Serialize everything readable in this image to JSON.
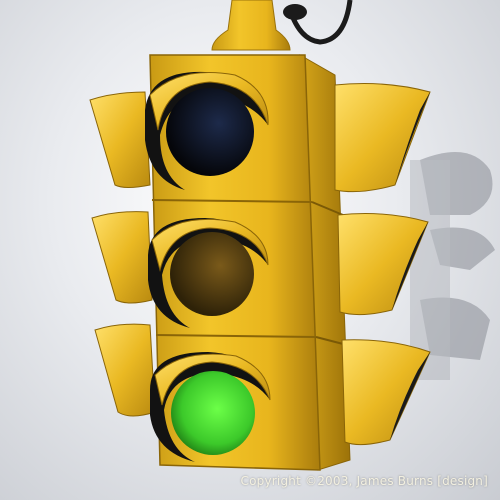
{
  "image": {
    "subject": "traffic-signal",
    "colors": {
      "housing": "#e8b51d",
      "housing_dark": "#b88812",
      "housing_light": "#ffdf5a",
      "lens_top": "#0b0d14",
      "lens_middle": "#4d3a10",
      "lens_bottom": "#3fcf2c",
      "visor_inner": "#1a1a1a",
      "cable": "#1b1b1b"
    },
    "lit_lamp": "bottom-green"
  },
  "caption": {
    "copyright": "Copyright ©2003, James Burns [design]"
  }
}
